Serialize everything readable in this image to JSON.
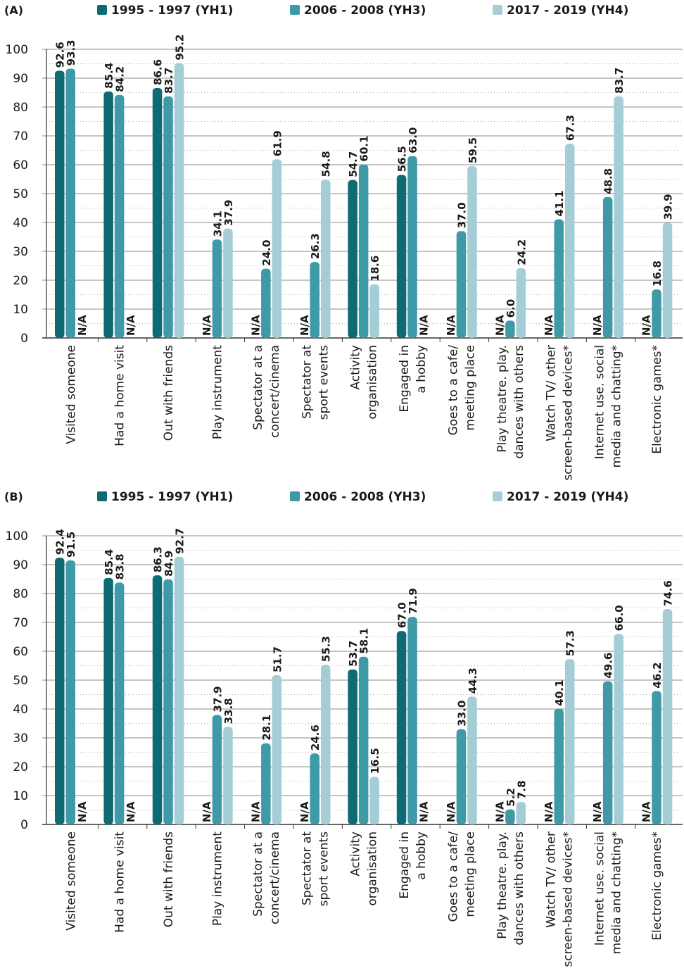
{
  "colors": {
    "YH1": "#0e6a73",
    "YH3": "#3d9aa6",
    "YH4": "#a5cdd6",
    "grid": "#8c8c8c",
    "axis": "#333333"
  },
  "legend": [
    {
      "label": "1995 - 1997 (YH1)",
      "color": "#0e6a73"
    },
    {
      "label": "2006 - 2008 (YH3)",
      "color": "#3d9aa6"
    },
    {
      "label": "2017 - 2019 (YH4)",
      "color": "#a5cdd6"
    }
  ],
  "chart_data": [
    {
      "panel": "(A)",
      "type": "bar",
      "ylim": [
        0,
        100
      ],
      "yticks": [
        0,
        10,
        20,
        30,
        40,
        50,
        60,
        70,
        80,
        90,
        100
      ],
      "na_label": "N/A",
      "categories": [
        [
          "Visited someone"
        ],
        [
          "Had a home visit"
        ],
        [
          "Out with friends"
        ],
        [
          "Play instrument"
        ],
        [
          "Spectator at a",
          "concert/cinema"
        ],
        [
          "Spectator at",
          "sport events"
        ],
        [
          "Activity",
          "organisation"
        ],
        [
          "Engaged in",
          "a hobby"
        ],
        [
          "Goes to a cafe/",
          "meeting place"
        ],
        [
          "Play theatre. play.",
          "dances with others"
        ],
        [
          "Watch TV/ other",
          "screen-based devices*"
        ],
        [
          "Internet use. social",
          "media and chatting*"
        ],
        [
          "Electronic games*"
        ]
      ],
      "series": [
        {
          "name": "1995 - 1997 (YH1)",
          "values": [
            92.6,
            85.4,
            86.6,
            null,
            null,
            null,
            54.7,
            56.5,
            null,
            null,
            null,
            null,
            null
          ],
          "labels": [
            "92.6",
            "85.4",
            "86.6",
            "N/A",
            "N/A",
            "N/A",
            "54.7",
            "56.5",
            "N/A",
            "N/A",
            "N/A",
            "N/A",
            "N/A"
          ]
        },
        {
          "name": "2006 - 2008 (YH3)",
          "values": [
            93.3,
            84.2,
            83.7,
            34.1,
            24.0,
            26.3,
            60.1,
            63.0,
            37.0,
            6.0,
            41.1,
            48.8,
            16.8
          ],
          "labels": [
            "93.3",
            "84.2",
            "83.7",
            "34.1",
            "24.0",
            "26.3",
            "60.1",
            "63.0",
            "37.0",
            "6.0",
            "41.1",
            "48.8",
            "16.8"
          ]
        },
        {
          "name": "2017 - 2019 (YH4)",
          "values": [
            null,
            null,
            95.2,
            37.9,
            61.9,
            54.8,
            18.6,
            null,
            59.5,
            24.2,
            67.3,
            83.7,
            39.9
          ],
          "labels": [
            "N/A",
            "N/A",
            "95.2",
            "37.9",
            "61.9",
            "54.8",
            "18.6",
            "N/A",
            "59.5",
            "24.2",
            "67.3",
            "83.7",
            "39.9"
          ]
        }
      ]
    },
    {
      "panel": "(B)",
      "type": "bar",
      "ylim": [
        0,
        100
      ],
      "yticks": [
        0,
        10,
        20,
        30,
        40,
        50,
        60,
        70,
        80,
        90,
        100
      ],
      "na_label": "N/A",
      "categories": [
        [
          "Visited someone"
        ],
        [
          "Had a home visit"
        ],
        [
          "Out with friends"
        ],
        [
          "Play instrument"
        ],
        [
          "Spectator at a",
          "concert/cinema"
        ],
        [
          "Spectator at",
          "sport events"
        ],
        [
          "Activity",
          "organisation"
        ],
        [
          "Engaged in",
          "a hobby"
        ],
        [
          "Goes to a cafe/",
          "meeting place"
        ],
        [
          "Play theatre. play.",
          "dances with others"
        ],
        [
          "Watch TV/ other",
          "screen-based devices*"
        ],
        [
          "Internet use. social",
          "media and chatting*"
        ],
        [
          "Electronic games*"
        ]
      ],
      "series": [
        {
          "name": "1995 - 1997 (YH1)",
          "values": [
            92.4,
            85.4,
            86.3,
            null,
            null,
            null,
            53.7,
            67.0,
            null,
            null,
            null,
            null,
            null
          ],
          "labels": [
            "92.4",
            "85.4",
            "86.3",
            "N/A",
            "N/A",
            "N/A",
            "53.7",
            "67.0",
            "N/A",
            "N/A",
            "N/A",
            "N/A",
            "N/A"
          ]
        },
        {
          "name": "2006 - 2008 (YH3)",
          "values": [
            91.5,
            83.8,
            84.9,
            37.9,
            28.1,
            24.6,
            58.1,
            71.9,
            33.0,
            5.2,
            40.1,
            49.6,
            46.2
          ],
          "labels": [
            "91.5",
            "83.8",
            "84.9",
            "37.9",
            "28.1",
            "24.6",
            "58.1",
            "71.9",
            "33.0",
            "5.2",
            "40.1",
            "49.6",
            "46.2"
          ]
        },
        {
          "name": "2017 - 2019 (YH4)",
          "values": [
            null,
            null,
            92.7,
            33.8,
            51.7,
            55.3,
            16.5,
            null,
            44.3,
            7.8,
            57.3,
            66.0,
            74.6
          ],
          "labels": [
            "N/A",
            "N/A",
            "92.7",
            "33.8",
            "51.7",
            "55.3",
            "16.5",
            "N/A",
            "44.3",
            "7.8",
            "57.3",
            "66.0",
            "74.6"
          ]
        }
      ]
    }
  ]
}
